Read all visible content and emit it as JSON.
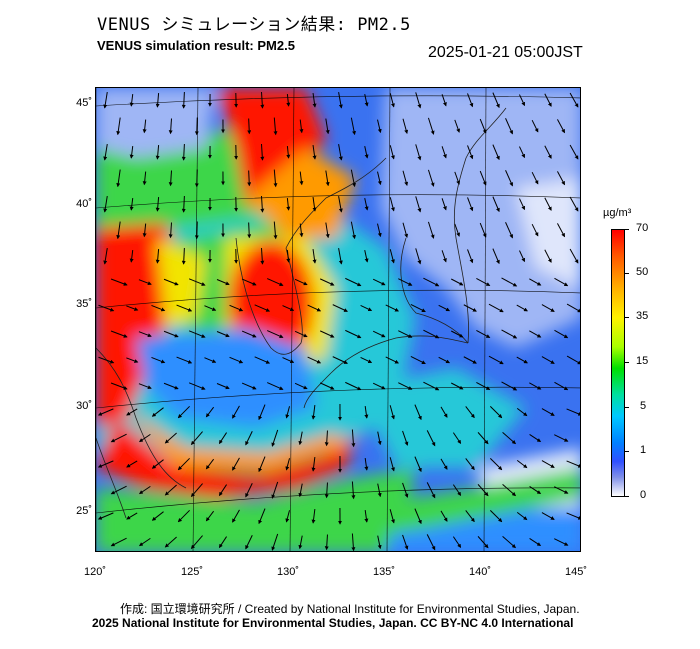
{
  "header": {
    "title_jp": "VENUS シミュレーション結果: PM2.5",
    "title_en": "VENUS simulation result: PM2.5",
    "timestamp": "2025-01-21 05:00JST"
  },
  "map": {
    "lat_labels": [
      "45˚",
      "40˚",
      "35˚",
      "30˚",
      "25˚"
    ],
    "lon_labels": [
      "120˚",
      "125˚",
      "130˚",
      "135˚",
      "140˚",
      "145˚"
    ],
    "colors": {
      "ocean_low": "#5a7ae8",
      "very_low": "#dfe6fb",
      "low": "#2d8fff",
      "mid": "#25c8d8",
      "mid_high": "#3ed64a",
      "high": "#f2e400",
      "very_high": "#ff9a00",
      "extreme": "#ff1600"
    }
  },
  "colorbar": {
    "unit": "µg/m³",
    "ticks": [
      "70",
      "50",
      "35",
      "15",
      "5",
      "1",
      "0"
    ]
  },
  "footer": {
    "credit": "作成: 国立環境研究所 / Created by National Institute for Environmental Studies, Japan.",
    "license": "2025 National Institute for Environmental Studies, Japan. CC BY-NC 4.0 International"
  }
}
